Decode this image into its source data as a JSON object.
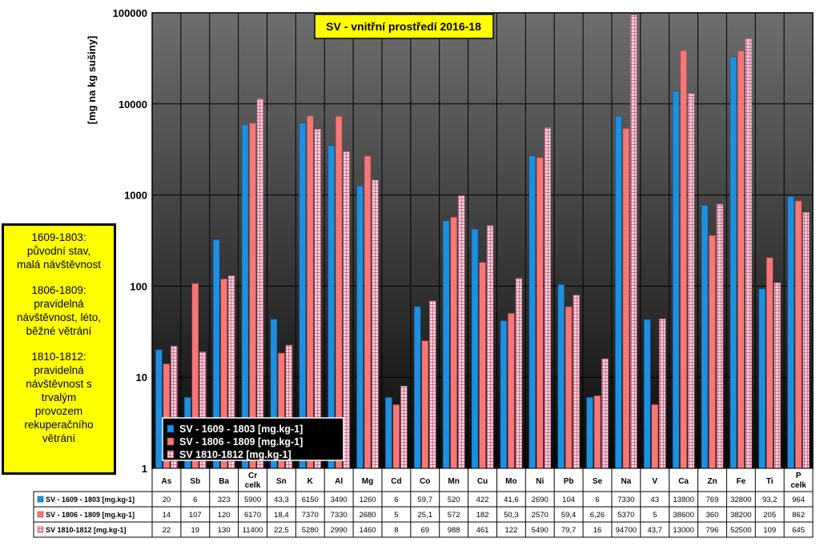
{
  "chart_data": {
    "type": "bar",
    "title": "SV - vnitřní prostředí 2016-18",
    "ylabel": "[mg na kg sušiny]",
    "xlabel": "",
    "yscale": "log",
    "ylim": [
      1,
      100000
    ],
    "yticks": [
      "1",
      "10",
      "100",
      "1000",
      "10000",
      "100000"
    ],
    "grid": true,
    "legend_position": "bottom-left",
    "categories": [
      "As",
      "Sb",
      "Ba",
      "Cr celk",
      "Sn",
      "K",
      "Al",
      "Mg",
      "Cd",
      "Co",
      "Mn",
      "Cu",
      "Mo",
      "Ni",
      "Pb",
      "Se",
      "Na",
      "V",
      "Ca",
      "Zn",
      "Fe",
      "Ti",
      "P celk"
    ],
    "series": [
      {
        "name": "SV - 1609 - 1803  [mg.kg-1]",
        "table_name": "SV - 1609 - 1803  [mg.kg-1]",
        "color": "#1f8fe0",
        "values": [
          20,
          6,
          323,
          5900,
          43.3,
          6150,
          3490,
          1260,
          6,
          59.7,
          520,
          422,
          41.6,
          2690,
          104,
          6,
          7330,
          43,
          13800,
          769,
          32800,
          93.2,
          964
        ],
        "labels": [
          "20",
          "6",
          "323",
          "5900",
          "43,3",
          "6150",
          "3490",
          "1260",
          "6",
          "59,7",
          "520",
          "422",
          "41,6",
          "2690",
          "104",
          "6",
          "7330",
          "43",
          "13800",
          "769",
          "32800",
          "93,2",
          "964"
        ]
      },
      {
        "name": "SV - 1806 - 1809  [mg.kg-1]",
        "table_name": "SV - 1806 - 1809  [mg.kg-1]",
        "color": "#f47878",
        "values": [
          14,
          107,
          120,
          6170,
          18.4,
          7370,
          7330,
          2680,
          5,
          25.1,
          572,
          182,
          50.3,
          2570,
          59.4,
          6.26,
          5370,
          5,
          38600,
          360,
          38200,
          205,
          862
        ],
        "labels": [
          "14",
          "107",
          "120",
          "6170",
          "18,4",
          "7370",
          "7330",
          "2680",
          "5",
          "25,1",
          "572",
          "182",
          "50,3",
          "2570",
          "59,4",
          "6,26",
          "5370",
          "5",
          "38600",
          "360",
          "38200",
          "205",
          "862"
        ]
      },
      {
        "name": "SV 1810-1812 [mg.kg-1]",
        "table_name": "SV 1810-1812 [mg.kg-1]",
        "color": "#f0b8c8",
        "values": [
          22,
          19,
          130,
          11400,
          22.5,
          5280,
          2990,
          1460,
          8,
          69,
          988,
          461,
          122,
          5490,
          79.7,
          16,
          94700,
          43.7,
          13000,
          796,
          52500,
          109,
          645
        ],
        "labels": [
          "22",
          "19",
          "130",
          "11400",
          "22,5",
          "5280",
          "2990",
          "1460",
          "8",
          "69",
          "988",
          "461",
          "122",
          "5490",
          "79,7",
          "16",
          "94700",
          "43,7",
          "13000",
          "796",
          "52500",
          "109",
          "645"
        ]
      }
    ]
  },
  "notes": [
    {
      "lines": [
        "1609-1803:",
        "původní stav,",
        "malá návštěvnost"
      ]
    },
    {
      "lines": [
        "1806-1809:",
        "pravidelná",
        "návštěvnost, léto,",
        "běžné větrání"
      ]
    },
    {
      "lines": [
        "1810-1812:",
        "pravidelná",
        "návštěvnost s",
        "trvalým",
        "provozem",
        "rekuperačního",
        "větrání"
      ]
    }
  ],
  "colors": {
    "title_bg": "#ffff00",
    "plot_bg_top": "#6e6e6e",
    "plot_bg_bottom": "#0a0a0a",
    "legend_bg": "#000000"
  }
}
